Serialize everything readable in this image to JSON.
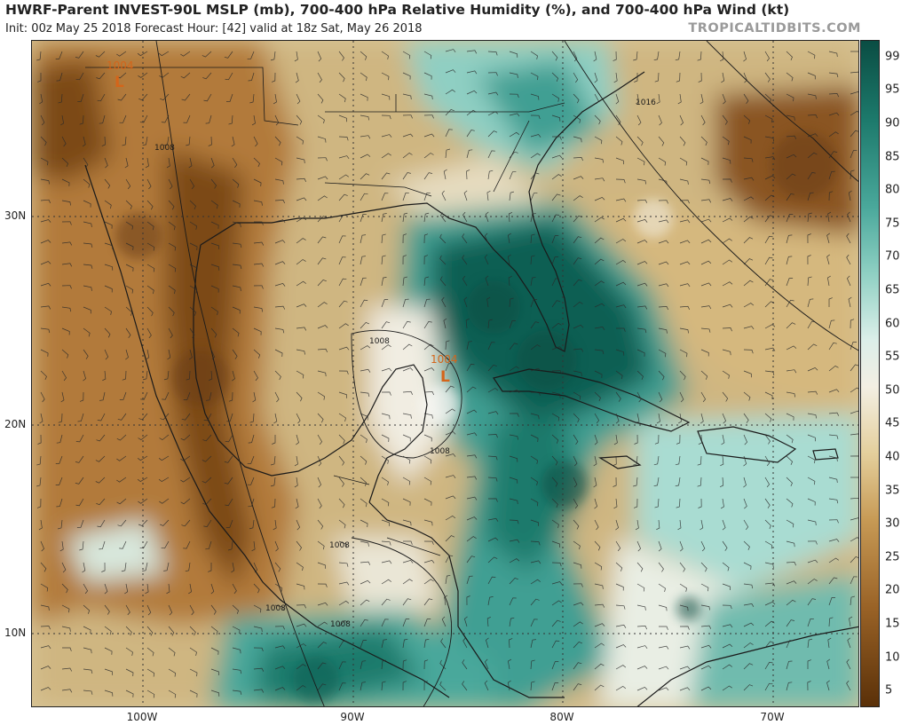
{
  "header": {
    "title": "HWRF-Parent INVEST-90L MSLP (mb), 700-400 hPa Relative Humidity (%), and 700-400 hPa Wind (kt)",
    "subtitle": "Init: 00z May 25 2018   Forecast Hour: [42]   valid at 18z Sat, May 26 2018",
    "brand": "TROPICALTIDBITS.COM"
  },
  "colors": {
    "dry_dark": "#6b3e12",
    "dry_mid": "#b27a3a",
    "dry_light": "#dcc48a",
    "neutral": "#f3efe3",
    "moist_light": "#a9dcd2",
    "moist_mid": "#3f9f93",
    "moist_dark": "#0e5e52",
    "pressure_label": "#d4651a",
    "line": "#1a1a1a"
  },
  "colorbar": {
    "levels": [
      "99",
      "95",
      "90",
      "85",
      "80",
      "75",
      "70",
      "65",
      "60",
      "55",
      "50",
      "45",
      "40",
      "35",
      "30",
      "25",
      "20",
      "15",
      "10",
      "5"
    ]
  },
  "axes": {
    "lat_labels": [
      "30N",
      "20N",
      "10N"
    ],
    "lon_labels": [
      "100W",
      "90W",
      "80W",
      "70W"
    ]
  },
  "pressure_lows": [
    {
      "value": "1004",
      "symbol": "L"
    },
    {
      "value": "1004",
      "symbol": "L"
    }
  ],
  "isobar_labels": [
    "1008",
    "1016",
    "1008",
    "1008",
    "1008",
    "1008",
    "1008"
  ]
}
